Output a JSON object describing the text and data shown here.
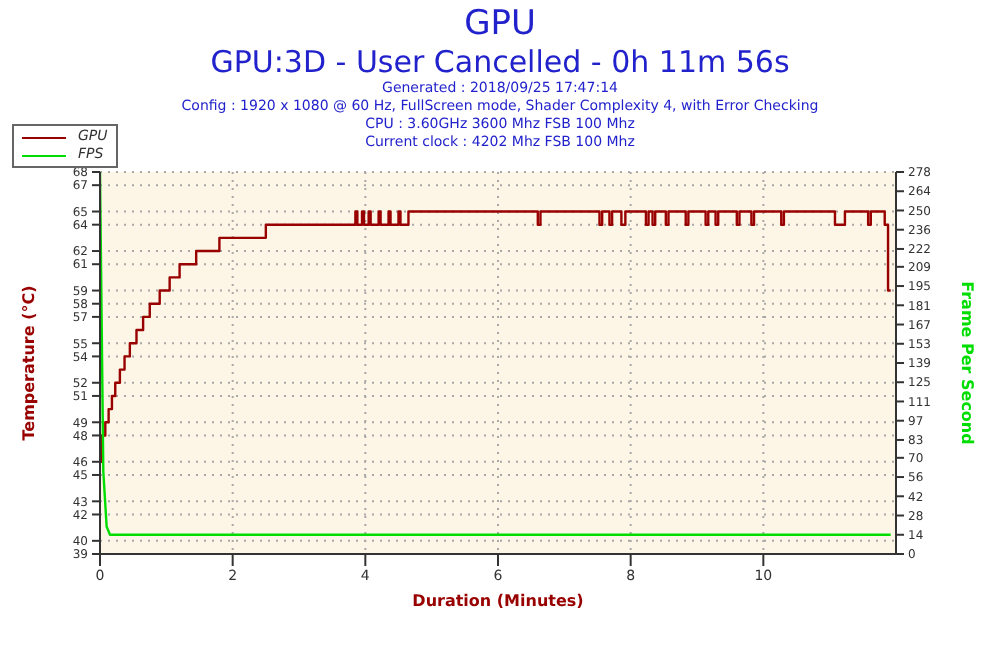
{
  "chart_data": {
    "type": "line",
    "title": "GPU",
    "subtitle": "GPU:3D - User Cancelled - 0h 11m 56s",
    "annotations": [
      "Generated : 2018/09/25 17:47:14",
      "Config : 1920 x 1080 @ 60 Hz, FullScreen mode, Shader Complexity 4, with Error Checking",
      "CPU : 3.60GHz 3600 Mhz FSB 100 Mhz",
      "Current clock : 4202 Mhz FSB 100 Mhz"
    ],
    "xlabel": "Duration (Minutes)",
    "ylabel": "Temperature (°C)",
    "y2label": "Frame Per Second",
    "xlim": [
      0,
      12
    ],
    "xticks": [
      0,
      2,
      4,
      6,
      8,
      10
    ],
    "ylim": [
      39,
      68
    ],
    "yticks": [
      39,
      40,
      42,
      43,
      45,
      46,
      48,
      49,
      51,
      52,
      54,
      55,
      57,
      58,
      59,
      61,
      62,
      64,
      65,
      67,
      68
    ],
    "y2lim": [
      0,
      278
    ],
    "y2ticks": [
      0,
      14,
      28,
      42,
      56,
      70,
      83,
      97,
      111,
      125,
      139,
      153,
      167,
      181,
      195,
      209,
      222,
      236,
      250,
      264,
      278
    ],
    "grid": true,
    "legend": "top left",
    "marker": "none",
    "series": [
      {
        "name": "GPU",
        "type": "step",
        "color": "#990000",
        "x": [
          0,
          0.02,
          0.08,
          0.13,
          0.18,
          0.23,
          0.3,
          0.37,
          0.45,
          0.55,
          0.65,
          0.75,
          0.9,
          1.05,
          1.2,
          1.45,
          1.8,
          2.5,
          3.85,
          3.88,
          3.95,
          3.98,
          4.05,
          4.08,
          4.2,
          4.23,
          4.35,
          4.38,
          4.5,
          4.53,
          4.65,
          6.6,
          6.64,
          7.53,
          7.57,
          7.68,
          7.72,
          7.86,
          7.92,
          8.23,
          8.27,
          8.33,
          8.37,
          8.53,
          8.57,
          8.83,
          8.87,
          9.13,
          9.17,
          9.28,
          9.32,
          9.6,
          9.64,
          9.82,
          9.86,
          10.27,
          10.31,
          11.08,
          11.23,
          11.58,
          11.62,
          11.83,
          11.88,
          11.92
        ],
        "values": [
          46,
          48,
          49,
          50,
          51,
          52,
          53,
          54,
          55,
          56,
          57,
          58,
          59,
          60,
          61,
          62,
          63,
          64,
          65,
          64,
          65,
          64,
          65,
          64,
          65,
          64,
          65,
          64,
          65,
          64,
          65,
          64,
          65,
          64,
          65,
          64,
          65,
          64,
          65,
          64,
          65,
          64,
          65,
          64,
          65,
          64,
          65,
          64,
          65,
          64,
          65,
          64,
          65,
          64,
          65,
          64,
          65,
          64,
          65,
          64,
          65,
          64,
          59,
          59
        ]
      },
      {
        "name": "FPS",
        "type": "line",
        "axis": "y2",
        "color": "#00dd00",
        "x": [
          0,
          0.05,
          0.1,
          0.15,
          11.92
        ],
        "values": [
          278,
          60,
          20,
          14,
          14
        ]
      }
    ]
  }
}
